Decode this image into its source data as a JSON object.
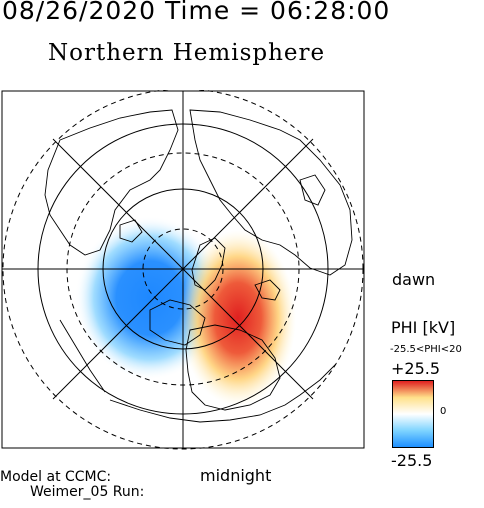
{
  "header": {
    "datetime": "08/26/2020 Time = 06:28:00",
    "hemisphere": "Northern Hemisphere"
  },
  "map_labels": {
    "dawn": "dawn",
    "midnight": "midnight"
  },
  "colorbar": {
    "title": "PHI [kV]",
    "range_text": "-25.5<PHI<20",
    "max_label": "+25.5",
    "zero_label": "0",
    "min_label": "-25.5",
    "colors": [
      "#1e90ff",
      "#7fd4ff",
      "#ffffff",
      "#ffe08a",
      "#e02020"
    ]
  },
  "footer": {
    "line1": "Model at CCMC:",
    "line2": "Weimer_05 Run:"
  }
}
